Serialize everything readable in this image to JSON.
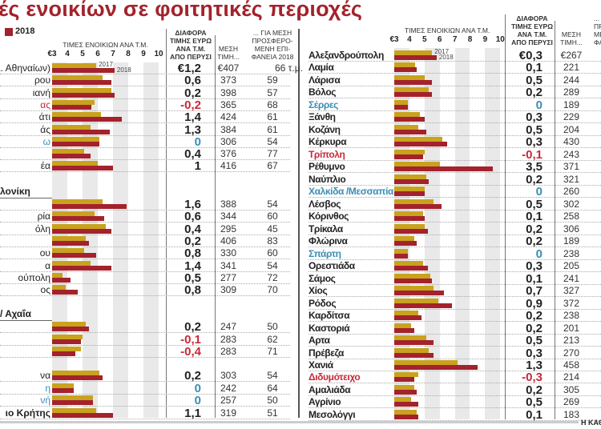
{
  "title": "ές ενοικίων σε φοιτητικές περιοχές",
  "legend": {
    "label": "2018",
    "color": "#a3222b"
  },
  "colors": {
    "y2017": "#c9a21e",
    "y2018": "#a3222b",
    "negative": "#c8283a",
    "zero": "#3b8db4"
  },
  "headers": {
    "chart": "ΤΙΜΕΣ ΕΝΟΙΚΙΩΝ ΑΝΑ Τ.Μ.",
    "diff": [
      "ΔΙΑΦΟΡΑ",
      "ΤΙΜΗΣ ΕΥΡΩ",
      "ΑΝΑ Τ.Μ.",
      "ΑΠΟ ΠΕΡΥΣΙ"
    ],
    "price": [
      "ΜΕΣΗ",
      "ΤΙΜΗ..."
    ],
    "area": [
      "... ΓΙΑ ΜΕΣΗ",
      "ΠΡΟΣΦΕΡΟ-",
      "ΜΕΝΗ ΕΠΙ-",
      "ΦΑΝΕΙΑ 2018"
    ],
    "area_right_visible": [
      "... Γ",
      "ΠΡΟ",
      "ΜΕ",
      "ΦΑ"
    ]
  },
  "footer": "Η ΚΑΘ",
  "chart_data": [
    {
      "type": "bar",
      "orientation": "horizontal",
      "title": "ΤΙΜΕΣ ΕΝΟΙΚΙΩΝ ΑΝΑ Τ.Μ.",
      "xlim": [
        3,
        10
      ],
      "tick_labels": [
        "€3",
        "4",
        "5",
        "6",
        "7",
        "8",
        "9",
        "10"
      ],
      "grid": "alternating vertical bands",
      "series_names": [
        "2017",
        "2018"
      ],
      "sections": [
        {
          "header": "",
          "rows": [
            {
              "label": "(Δ. Αθηναίων)",
              "v2017": 5.9,
              "v2018": 7.1,
              "diff": "€1,2",
              "price": "€407",
              "area": "66 τ.μ."
            },
            {
              "label": "ρου",
              "v2017": 6.3,
              "v2018": 6.9,
              "diff": "0,6",
              "price": "373",
              "area": "59"
            },
            {
              "label": "ιανή",
              "v2017": 6.9,
              "v2018": 7.1,
              "diff": "0,2",
              "price": "398",
              "area": "57"
            },
            {
              "label": "ας",
              "v2017": 5.8,
              "v2018": 5.6,
              "diff": "-0,2",
              "price": "365",
              "area": "68"
            },
            {
              "label": "άτι",
              "v2017": 6.2,
              "v2018": 7.6,
              "diff": "1,4",
              "price": "424",
              "area": "61"
            },
            {
              "label": "άς",
              "v2017": 5.5,
              "v2018": 6.8,
              "diff": "1,3",
              "price": "384",
              "area": "61"
            },
            {
              "label": "ω",
              "v2017": 6.1,
              "v2018": 6.1,
              "diff": "0",
              "price": "306",
              "area": "54"
            },
            {
              "label": "",
              "v2017": 5.1,
              "v2018": 5.5,
              "diff": "0,4",
              "price": "376",
              "area": "77"
            },
            {
              "label": "έα",
              "v2017": 6.0,
              "v2018": 7.0,
              "diff": "1",
              "price": "416",
              "area": "67"
            }
          ]
        },
        {
          "header": "λονίκη",
          "rows": [
            {
              "label": "",
              "v2017": 6.3,
              "v2018": 7.9,
              "diff": "1,6",
              "price": "388",
              "area": "54"
            },
            {
              "label": "ρία",
              "v2017": 5.8,
              "v2018": 6.4,
              "diff": "0,6",
              "price": "344",
              "area": "60"
            },
            {
              "label": "όλη",
              "v2017": 6.5,
              "v2018": 6.9,
              "diff": "0,4",
              "price": "295",
              "area": "45"
            },
            {
              "label": "",
              "v2017": 5.2,
              "v2018": 5.4,
              "diff": "0,2",
              "price": "406",
              "area": "83"
            },
            {
              "label": "ου",
              "v2017": 5.1,
              "v2018": 5.9,
              "diff": "0,8",
              "price": "330",
              "area": "60"
            },
            {
              "label": "α",
              "v2017": 5.5,
              "v2018": 6.9,
              "diff": "1,4",
              "price": "341",
              "area": "54"
            },
            {
              "label": "ούπολη",
              "v2017": 3.7,
              "v2018": 4.2,
              "diff": "0,5",
              "price": "277",
              "area": "72"
            },
            {
              "label": "ος",
              "v2017": 3.9,
              "v2018": 4.7,
              "diff": "0,8",
              "price": "309",
              "area": "70"
            }
          ]
        },
        {
          "header": "/ Αχαΐα",
          "rows": [
            {
              "label": "",
              "v2017": 5.2,
              "v2018": 5.4,
              "diff": "0,2",
              "price": "247",
              "area": "50"
            },
            {
              "label": "",
              "v2017": 5.0,
              "v2018": 4.9,
              "diff": "-0,1",
              "price": "283",
              "area": "62"
            },
            {
              "label": "",
              "v2017": 4.9,
              "v2018": 4.5,
              "diff": "-0,4",
              "price": "283",
              "area": "71"
            },
            {
              "label": "να",
              "v2017": 6.1,
              "v2018": 6.3,
              "diff": "0,2",
              "price": "303",
              "area": "54"
            },
            {
              "label": "η",
              "v2017": 4.4,
              "v2018": 4.4,
              "diff": "0",
              "price": "242",
              "area": "64"
            },
            {
              "label": "νή",
              "v2017": 5.7,
              "v2018": 5.7,
              "diff": "0",
              "price": "257",
              "area": "50"
            },
            {
              "label": "ιο Κρήτης",
              "v2017": 5.9,
              "v2018": 7.0,
              "diff": "1,1",
              "price": "319",
              "area": "51"
            }
          ]
        }
      ]
    },
    {
      "type": "bar",
      "orientation": "horizontal",
      "title": "ΤΙΜΕΣ ΕΝΟΙΚΙΩΝ ΑΝΑ Τ.Μ.",
      "xlim": [
        3,
        10
      ],
      "tick_labels": [
        "€3",
        "4",
        "5",
        "6",
        "7",
        "8",
        "9",
        "10"
      ],
      "grid": "alternating vertical bands",
      "series_names": [
        "2017",
        "2018"
      ],
      "sections": [
        {
          "header": "",
          "rows": [
            {
              "label": "Αλεξανδρούπολη",
              "v2017": 5.5,
              "v2018": 5.8,
              "diff": "€0,3",
              "price": "€267"
            },
            {
              "label": "Λαμία",
              "v2017": 4.4,
              "v2018": 4.5,
              "diff": "0,1",
              "price": "221"
            },
            {
              "label": "Λάρισα",
              "v2017": 5.0,
              "v2018": 5.5,
              "diff": "0,5",
              "price": "244"
            },
            {
              "label": "Βόλος",
              "v2017": 5.3,
              "v2018": 5.5,
              "diff": "0,2",
              "price": "289"
            },
            {
              "label": "Σέρρες",
              "v2017": 3.9,
              "v2018": 3.9,
              "diff": "0",
              "price": "189"
            },
            {
              "label": "Ξάνθη",
              "v2017": 4.7,
              "v2018": 5.0,
              "diff": "0,3",
              "price": "229"
            },
            {
              "label": "Κοζάνη",
              "v2017": 4.6,
              "v2018": 5.1,
              "diff": "0,5",
              "price": "204"
            },
            {
              "label": "Κέρκυρα",
              "v2017": 6.2,
              "v2018": 6.5,
              "diff": "0,3",
              "price": "430"
            },
            {
              "label": "Τρίπολη",
              "v2017": 5.0,
              "v2018": 4.9,
              "diff": "-0,1",
              "price": "243"
            },
            {
              "label": "Ρέθυμνο",
              "v2017": 6.0,
              "v2018": 9.5,
              "diff": "3,5",
              "price": "371"
            },
            {
              "label": "Ναύπλιο",
              "v2017": 5.1,
              "v2018": 5.3,
              "diff": "0,2",
              "price": "321"
            },
            {
              "label": "Χαλκίδα /Μεσσαπία",
              "v2017": 5.0,
              "v2018": 5.0,
              "diff": "0",
              "price": "260"
            },
            {
              "label": "Λέσβος",
              "v2017": 5.6,
              "v2018": 6.1,
              "diff": "0,5",
              "price": "302"
            },
            {
              "label": "Κόρινθος",
              "v2017": 4.9,
              "v2018": 5.0,
              "diff": "0,1",
              "price": "258"
            },
            {
              "label": "Τρίκαλα",
              "v2017": 5.0,
              "v2018": 5.2,
              "diff": "0,2",
              "price": "306"
            },
            {
              "label": "Φλώρινα",
              "v2017": 4.3,
              "v2018": 4.5,
              "diff": "0,2",
              "price": "189"
            },
            {
              "label": "Σπάρτη",
              "v2017": 3.9,
              "v2018": 3.9,
              "diff": "0",
              "price": "238"
            },
            {
              "label": "Ορεστιάδα",
              "v2017": 4.9,
              "v2018": 5.2,
              "diff": "0,3",
              "price": "205"
            },
            {
              "label": "Σάμος",
              "v2017": 5.4,
              "v2018": 5.5,
              "diff": "0,1",
              "price": "241"
            },
            {
              "label": "Χίος",
              "v2017": 5.6,
              "v2018": 6.3,
              "diff": "0,7",
              "price": "327"
            },
            {
              "label": "Ρόδος",
              "v2017": 5.9,
              "v2018": 6.8,
              "diff": "0,9",
              "price": "372"
            },
            {
              "label": "Καρδίτσα",
              "v2017": 4.6,
              "v2018": 4.8,
              "diff": "0,2",
              "price": "238"
            },
            {
              "label": "Καστοριά",
              "v2017": 4.1,
              "v2018": 4.3,
              "diff": "0,2",
              "price": "201"
            },
            {
              "label": "Αρτα",
              "v2017": 5.1,
              "v2018": 5.6,
              "diff": "0,5",
              "price": "213"
            },
            {
              "label": "Πρέβεζα",
              "v2017": 5.3,
              "v2018": 5.6,
              "diff": "0,3",
              "price": "270"
            },
            {
              "label": "Χανιά",
              "v2017": 7.2,
              "v2018": 8.5,
              "diff": "1,3",
              "price": "458"
            },
            {
              "label": "Διδυμότειχο",
              "v2017": 4.6,
              "v2018": 4.3,
              "diff": "-0,3",
              "price": "214"
            },
            {
              "label": "Αμαλιάδα",
              "v2017": 4.3,
              "v2018": 4.5,
              "diff": "0,2",
              "price": "305"
            },
            {
              "label": "Αγρίνιο",
              "v2017": 4.1,
              "v2018": 4.6,
              "diff": "0,5",
              "price": "269"
            },
            {
              "label": "Μεσολόγγι",
              "v2017": 4.5,
              "v2018": 4.6,
              "diff": "0,1",
              "price": "183"
            }
          ]
        }
      ]
    }
  ]
}
